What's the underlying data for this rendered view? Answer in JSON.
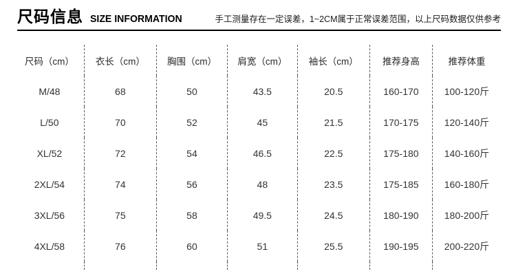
{
  "header": {
    "title_cn": "尺码信息",
    "title_en": "SIZE INFORMATION",
    "disclaimer": "手工测量存在一定误差，1~2CM属于正常误差范围，以上尺码数据仅供参考"
  },
  "chart_data": {
    "type": "table",
    "columns": [
      "尺码（cm）",
      "衣长（cm）",
      "胸围（cm）",
      "肩宽（cm）",
      "袖长（cm）",
      "推荐身高",
      "推荐体重"
    ],
    "rows": [
      [
        "M/48",
        "68",
        "50",
        "43.5",
        "20.5",
        "160-170",
        "100-120斤"
      ],
      [
        "L/50",
        "70",
        "52",
        "45",
        "21.5",
        "170-175",
        "120-140斤"
      ],
      [
        "XL/52",
        "72",
        "54",
        "46.5",
        "22.5",
        "175-180",
        "140-160斤"
      ],
      [
        "2XL/54",
        "74",
        "56",
        "48",
        "23.5",
        "175-185",
        "160-180斤"
      ],
      [
        "3XL/56",
        "75",
        "58",
        "49.5",
        "24.5",
        "180-190",
        "180-200斤"
      ],
      [
        "4XL/58",
        "76",
        "60",
        "51",
        "25.5",
        "190-195",
        "200-220斤"
      ]
    ]
  },
  "colors": {
    "text": "#333333",
    "title": "#000000",
    "rule": "#000000",
    "divider": "#555555",
    "background": "#ffffff"
  }
}
